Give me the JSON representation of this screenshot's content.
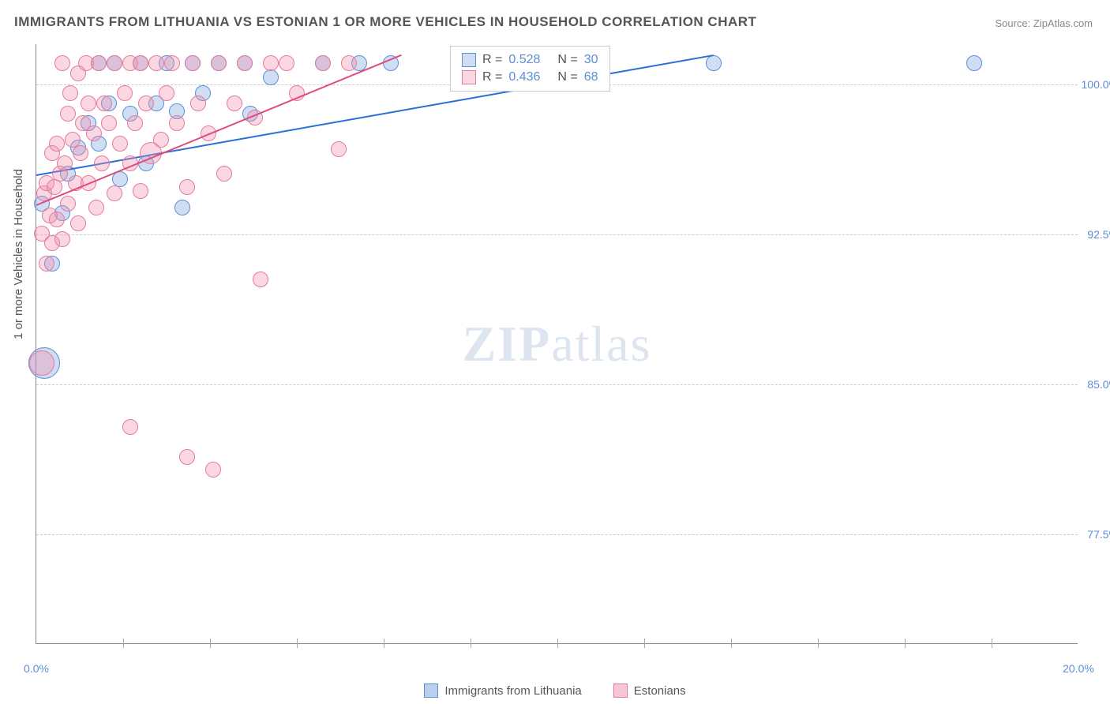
{
  "title": "IMMIGRANTS FROM LITHUANIA VS ESTONIAN 1 OR MORE VEHICLES IN HOUSEHOLD CORRELATION CHART",
  "source": "Source: ZipAtlas.com",
  "ylabel": "1 or more Vehicles in Household",
  "watermark_bold": "ZIP",
  "watermark_rest": "atlas",
  "chart": {
    "type": "scatter",
    "xlim": [
      0.0,
      20.0
    ],
    "ylim": [
      72.0,
      102.0
    ],
    "x_tick_labels": [
      {
        "v": 0.0,
        "label": "0.0%"
      },
      {
        "v": 20.0,
        "label": "20.0%"
      }
    ],
    "x_minor_ticks": [
      1.67,
      3.33,
      5.0,
      6.67,
      8.33,
      10.0,
      11.67,
      13.33,
      15.0,
      16.67,
      18.33
    ],
    "y_ticks": [
      {
        "v": 77.5,
        "label": "77.5%"
      },
      {
        "v": 85.0,
        "label": "85.0%"
      },
      {
        "v": 92.5,
        "label": "92.5%"
      },
      {
        "v": 100.0,
        "label": "100.0%"
      }
    ],
    "background_color": "#ffffff",
    "grid_color": "#cccccc",
    "series": [
      {
        "name": "Immigrants from Lithuania",
        "fill": "rgba(120,160,220,0.35)",
        "stroke": "#5b8fd6",
        "marker_r": 10,
        "trend": {
          "x1": 0.0,
          "y1": 95.5,
          "x2": 13.0,
          "y2": 101.5,
          "color": "#2a6fd6",
          "width": 2
        },
        "R": "0.528",
        "N": "30",
        "points": [
          [
            0.1,
            94.0
          ],
          [
            0.15,
            86.0,
            20
          ],
          [
            0.3,
            91.0
          ],
          [
            0.5,
            93.5
          ],
          [
            0.6,
            95.5
          ],
          [
            0.8,
            96.8
          ],
          [
            1.0,
            98.0
          ],
          [
            1.2,
            101.0
          ],
          [
            1.2,
            97.0
          ],
          [
            1.4,
            99.0
          ],
          [
            1.5,
            101.0
          ],
          [
            1.6,
            95.2
          ],
          [
            1.8,
            98.5
          ],
          [
            2.0,
            101.0
          ],
          [
            2.1,
            96.0
          ],
          [
            2.3,
            99.0
          ],
          [
            2.5,
            101.0
          ],
          [
            2.7,
            98.6
          ],
          [
            2.8,
            93.8
          ],
          [
            3.0,
            101.0
          ],
          [
            3.2,
            99.5
          ],
          [
            3.5,
            101.0
          ],
          [
            4.0,
            101.0
          ],
          [
            4.1,
            98.5
          ],
          [
            4.5,
            100.3
          ],
          [
            5.5,
            101.0
          ],
          [
            6.2,
            101.0
          ],
          [
            6.8,
            101.0
          ],
          [
            13.0,
            101.0
          ],
          [
            18.0,
            101.0
          ]
        ]
      },
      {
        "name": "Estonians",
        "fill": "rgba(240,140,170,0.35)",
        "stroke": "#e57ba0",
        "marker_r": 10,
        "trend": {
          "x1": 0.0,
          "y1": 94.0,
          "x2": 7.0,
          "y2": 101.5,
          "color": "#e04b7d",
          "width": 2
        },
        "R": "0.436",
        "N": "68",
        "points": [
          [
            0.1,
            92.5
          ],
          [
            0.1,
            86.0,
            16
          ],
          [
            0.15,
            94.5
          ],
          [
            0.2,
            91.0
          ],
          [
            0.2,
            95.0
          ],
          [
            0.25,
            93.4
          ],
          [
            0.3,
            96.5
          ],
          [
            0.3,
            92.0
          ],
          [
            0.35,
            94.8
          ],
          [
            0.4,
            97.0
          ],
          [
            0.4,
            93.2
          ],
          [
            0.45,
            95.5
          ],
          [
            0.5,
            101.0
          ],
          [
            0.5,
            92.2
          ],
          [
            0.55,
            96.0
          ],
          [
            0.6,
            98.5
          ],
          [
            0.6,
            94.0
          ],
          [
            0.65,
            99.5
          ],
          [
            0.7,
            97.2
          ],
          [
            0.75,
            95.0
          ],
          [
            0.8,
            100.5
          ],
          [
            0.8,
            93.0
          ],
          [
            0.85,
            96.5
          ],
          [
            0.9,
            98.0
          ],
          [
            0.95,
            101.0
          ],
          [
            1.0,
            99.0
          ],
          [
            1.0,
            95.0
          ],
          [
            1.1,
            97.5
          ],
          [
            1.15,
            93.8
          ],
          [
            1.2,
            101.0
          ],
          [
            1.25,
            96.0
          ],
          [
            1.3,
            99.0
          ],
          [
            1.4,
            98.0
          ],
          [
            1.5,
            101.0
          ],
          [
            1.5,
            94.5
          ],
          [
            1.6,
            97.0
          ],
          [
            1.7,
            99.5
          ],
          [
            1.8,
            101.0
          ],
          [
            1.8,
            96.0
          ],
          [
            1.9,
            98.0
          ],
          [
            2.0,
            101.0
          ],
          [
            2.0,
            94.6
          ],
          [
            2.1,
            99.0
          ],
          [
            2.2,
            96.5,
            14
          ],
          [
            2.3,
            101.0
          ],
          [
            2.4,
            97.2
          ],
          [
            2.5,
            99.5
          ],
          [
            2.6,
            101.0
          ],
          [
            2.7,
            98.0
          ],
          [
            2.9,
            94.8
          ],
          [
            3.0,
            101.0
          ],
          [
            3.1,
            99.0
          ],
          [
            3.3,
            97.5
          ],
          [
            3.5,
            101.0
          ],
          [
            3.6,
            95.5
          ],
          [
            3.8,
            99.0
          ],
          [
            4.0,
            101.0
          ],
          [
            4.2,
            98.3
          ],
          [
            4.5,
            101.0
          ],
          [
            4.8,
            101.0
          ],
          [
            5.0,
            99.5
          ],
          [
            5.5,
            101.0
          ],
          [
            5.8,
            96.7
          ],
          [
            6.0,
            101.0
          ],
          [
            1.8,
            82.8
          ],
          [
            2.9,
            81.3
          ],
          [
            3.4,
            80.7
          ],
          [
            4.3,
            90.2
          ]
        ]
      }
    ]
  },
  "legend": [
    {
      "label": "Immigrants from Lithuania",
      "fill": "rgba(120,160,220,0.5)",
      "stroke": "#5b8fd6"
    },
    {
      "label": "Estonians",
      "fill": "rgba(240,140,170,0.5)",
      "stroke": "#e57ba0"
    }
  ]
}
